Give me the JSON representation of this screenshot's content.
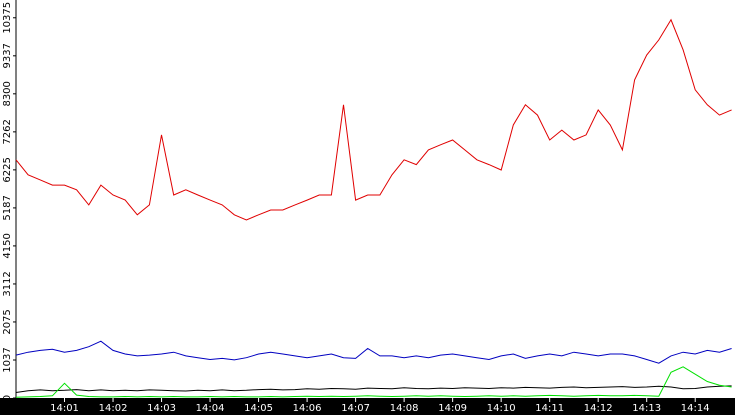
{
  "chart_data": {
    "type": "line",
    "x": [
      0,
      0.25,
      0.5,
      0.75,
      1,
      1.25,
      1.5,
      1.75,
      2,
      2.25,
      2.5,
      2.75,
      3,
      3.25,
      3.5,
      3.75,
      4,
      4.25,
      4.5,
      4.75,
      5,
      5.25,
      5.5,
      5.75,
      6,
      6.25,
      6.5,
      6.75,
      7,
      7.25,
      7.5,
      7.75,
      8,
      8.25,
      8.5,
      8.75,
      9,
      9.25,
      9.5,
      9.75,
      10,
      10.25,
      10.5,
      10.75,
      11,
      11.25,
      11.5,
      11.75,
      12,
      12.25,
      12.5,
      12.75,
      13,
      13.25,
      13.5,
      13.75,
      14,
      14.25,
      14.5,
      14.75
    ],
    "xlim": [
      0,
      14.82
    ],
    "xticks": [
      {
        "value": 1,
        "label": "14:01"
      },
      {
        "value": 2,
        "label": "14:02"
      },
      {
        "value": 3,
        "label": "14:03"
      },
      {
        "value": 4,
        "label": "14:04"
      },
      {
        "value": 5,
        "label": "14:05"
      },
      {
        "value": 6,
        "label": "14:06"
      },
      {
        "value": 7,
        "label": "14:07"
      },
      {
        "value": 8,
        "label": "14:08"
      },
      {
        "value": 9,
        "label": "14:09"
      },
      {
        "value": 10,
        "label": "14:10"
      },
      {
        "value": 11,
        "label": "14:11"
      },
      {
        "value": 12,
        "label": "14:12"
      },
      {
        "value": 13,
        "label": "14:13"
      },
      {
        "value": 14,
        "label": "14:14"
      }
    ],
    "ylim": [
      0,
      10860
    ],
    "yticks": [
      0,
      1037,
      2075,
      3112,
      4150,
      5187,
      6225,
      7262,
      8300,
      9337,
      10375
    ],
    "series": [
      {
        "color": "#e00000",
        "values": [
          6500,
          6090,
          5950,
          5810,
          5810,
          5680,
          5270,
          5810,
          5540,
          5400,
          5000,
          5270,
          7180,
          5540,
          5680,
          5540,
          5400,
          5270,
          5000,
          4860,
          5000,
          5130,
          5130,
          5270,
          5400,
          5540,
          5540,
          8000,
          5400,
          5540,
          5540,
          6090,
          6500,
          6370,
          6770,
          6910,
          7040,
          6770,
          6500,
          6370,
          6220,
          7450,
          8000,
          7720,
          7040,
          7310,
          7040,
          7180,
          7860,
          7450,
          6770,
          8680,
          9360,
          9770,
          10320,
          9500,
          8410,
          8000,
          7720,
          7860
        ]
      },
      {
        "color": "#0000c0",
        "values": [
          1170,
          1250,
          1300,
          1330,
          1250,
          1300,
          1400,
          1550,
          1300,
          1200,
          1150,
          1170,
          1200,
          1250,
          1150,
          1100,
          1050,
          1080,
          1040,
          1100,
          1200,
          1250,
          1200,
          1150,
          1100,
          1150,
          1200,
          1100,
          1080,
          1350,
          1150,
          1150,
          1100,
          1150,
          1100,
          1170,
          1200,
          1150,
          1100,
          1050,
          1150,
          1200,
          1080,
          1150,
          1200,
          1150,
          1250,
          1200,
          1150,
          1200,
          1200,
          1150,
          1050,
          950,
          1150,
          1250,
          1200,
          1300,
          1250,
          1350
        ]
      },
      {
        "color": "#000000",
        "values": [
          150,
          200,
          220,
          200,
          210,
          230,
          200,
          220,
          200,
          210,
          200,
          220,
          210,
          200,
          190,
          210,
          200,
          220,
          200,
          210,
          230,
          240,
          220,
          230,
          250,
          240,
          260,
          250,
          240,
          270,
          260,
          250,
          280,
          260,
          250,
          270,
          260,
          280,
          270,
          260,
          280,
          270,
          290,
          280,
          270,
          290,
          300,
          280,
          290,
          300,
          310,
          290,
          300,
          320,
          300,
          250,
          260,
          300,
          320,
          330
        ]
      },
      {
        "color": "#00e000",
        "values": [
          20,
          30,
          40,
          60,
          400,
          80,
          40,
          30,
          30,
          40,
          30,
          40,
          30,
          40,
          30,
          30,
          40,
          30,
          40,
          30,
          30,
          40,
          30,
          40,
          50,
          40,
          50,
          40,
          50,
          60,
          50,
          40,
          50,
          60,
          50,
          60,
          50,
          40,
          50,
          60,
          50,
          60,
          50,
          60,
          70,
          60,
          50,
          60,
          70,
          60,
          60,
          70,
          60,
          50,
          700,
          850,
          650,
          450,
          350,
          300
        ]
      }
    ]
  }
}
